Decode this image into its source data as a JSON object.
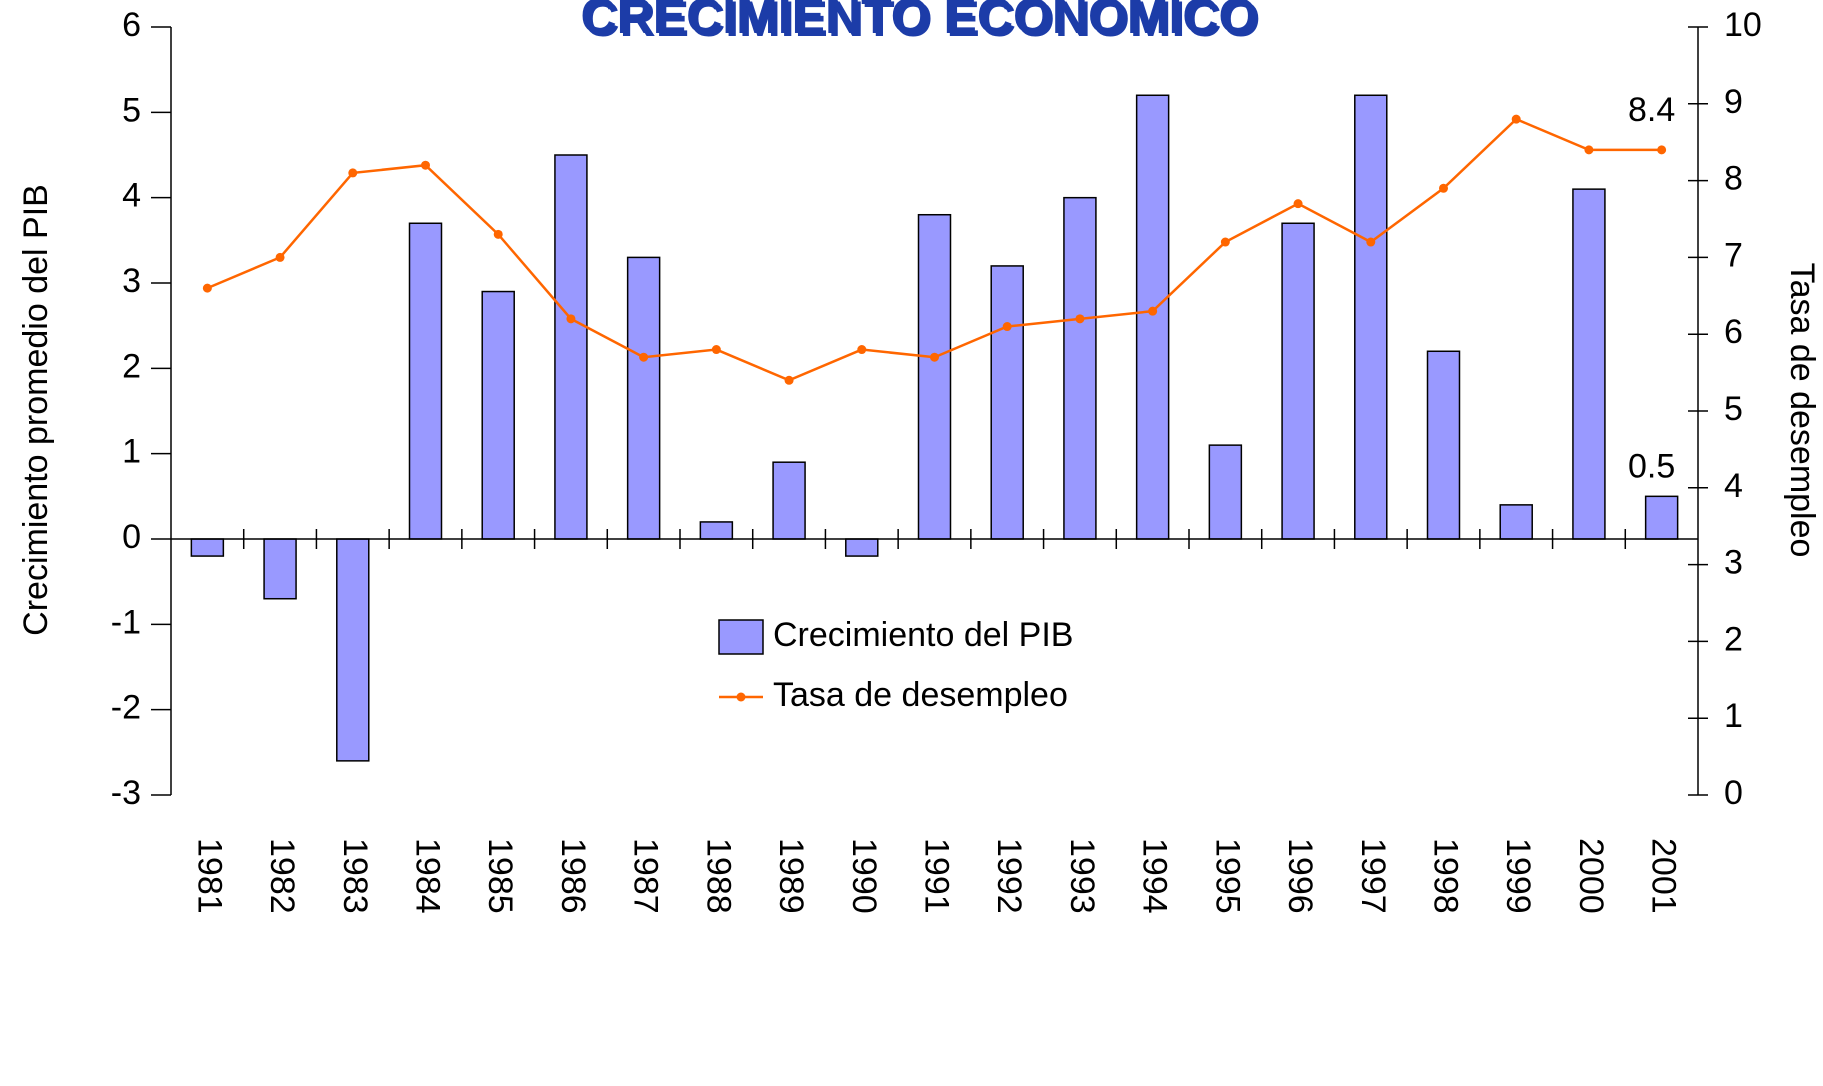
{
  "chart_data": {
    "type": "bar-line",
    "title": "CRECIMIENTO ECONOMICO",
    "ylabel": "Crecimiento promedio del PIB",
    "y2label": "Tasa de desempleo",
    "categories": [
      "1981",
      "1982",
      "1983",
      "1984",
      "1985",
      "1986",
      "1987",
      "1988",
      "1989",
      "1990",
      "1991",
      "1992",
      "1993",
      "1994",
      "1995",
      "1996",
      "1997",
      "1998",
      "1999",
      "2000",
      "2001"
    ],
    "series": [
      {
        "name": "Crecimiento del PIB",
        "type": "bar",
        "color": "#9999ff",
        "axis": "y",
        "values": [
          -0.2,
          -0.7,
          -2.6,
          3.7,
          2.9,
          4.5,
          3.3,
          0.2,
          0.9,
          -0.2,
          3.8,
          3.2,
          4.0,
          5.2,
          1.1,
          3.7,
          5.2,
          2.2,
          0.4,
          4.1,
          0.5
        ]
      },
      {
        "name": "Tasa de desempleo",
        "type": "line",
        "color": "#ff6600",
        "axis": "y2",
        "values": [
          6.6,
          7.0,
          8.1,
          8.2,
          7.3,
          6.2,
          5.7,
          5.8,
          5.4,
          5.8,
          5.7,
          6.1,
          6.2,
          6.3,
          7.2,
          7.7,
          7.2,
          7.9,
          8.8,
          8.4,
          8.4
        ]
      }
    ],
    "ylim": [
      -3,
      6
    ],
    "yticks": [
      -3,
      -2,
      -1,
      0,
      1,
      2,
      3,
      4,
      5,
      6
    ],
    "y2lim": [
      0,
      10
    ],
    "y2ticks": [
      0,
      1,
      2,
      3,
      4,
      5,
      6,
      7,
      8,
      9,
      10
    ],
    "grid": false
  }
}
